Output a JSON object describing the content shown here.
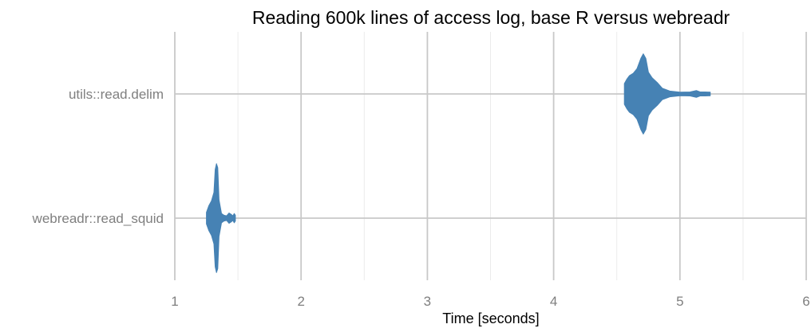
{
  "chart_data": {
    "type": "violin",
    "title": "Reading 600k lines of access log, base R versus webreadr",
    "xlabel": "Time [seconds]",
    "ylabel": "",
    "xlim": [
      1,
      6
    ],
    "x_ticks": [
      "1",
      "2",
      "3",
      "4",
      "5",
      "6"
    ],
    "categories": [
      "utils::read.delim",
      "webreadr::read_squid"
    ],
    "grid": true,
    "fill_color": "#4682b4",
    "series": [
      {
        "category": "utils::read.delim",
        "min": 4.56,
        "max": 5.24,
        "density": [
          [
            4.56,
            0.18
          ],
          [
            4.58,
            0.26
          ],
          [
            4.6,
            0.32
          ],
          [
            4.63,
            0.36
          ],
          [
            4.66,
            0.44
          ],
          [
            4.69,
            0.62
          ],
          [
            4.71,
            0.7
          ],
          [
            4.73,
            0.62
          ],
          [
            4.75,
            0.38
          ],
          [
            4.78,
            0.28
          ],
          [
            4.82,
            0.2
          ],
          [
            4.86,
            0.1
          ],
          [
            4.92,
            0.05
          ],
          [
            5.0,
            0.03
          ],
          [
            5.08,
            0.035
          ],
          [
            5.13,
            0.06
          ],
          [
            5.16,
            0.035
          ],
          [
            5.2,
            0.035
          ],
          [
            5.24,
            0.03
          ]
        ]
      },
      {
        "category": "webreadr::read_squid",
        "min": 1.25,
        "max": 1.48,
        "density": [
          [
            1.25,
            0.1
          ],
          [
            1.27,
            0.22
          ],
          [
            1.29,
            0.3
          ],
          [
            1.31,
            0.45
          ],
          [
            1.32,
            0.85
          ],
          [
            1.33,
            0.95
          ],
          [
            1.34,
            0.88
          ],
          [
            1.35,
            0.32
          ],
          [
            1.37,
            0.08
          ],
          [
            1.39,
            0.05
          ],
          [
            1.41,
            0.04
          ],
          [
            1.43,
            0.09
          ],
          [
            1.45,
            0.06
          ],
          [
            1.46,
            0.04
          ],
          [
            1.47,
            0.08
          ],
          [
            1.48,
            0.05
          ]
        ]
      }
    ]
  }
}
